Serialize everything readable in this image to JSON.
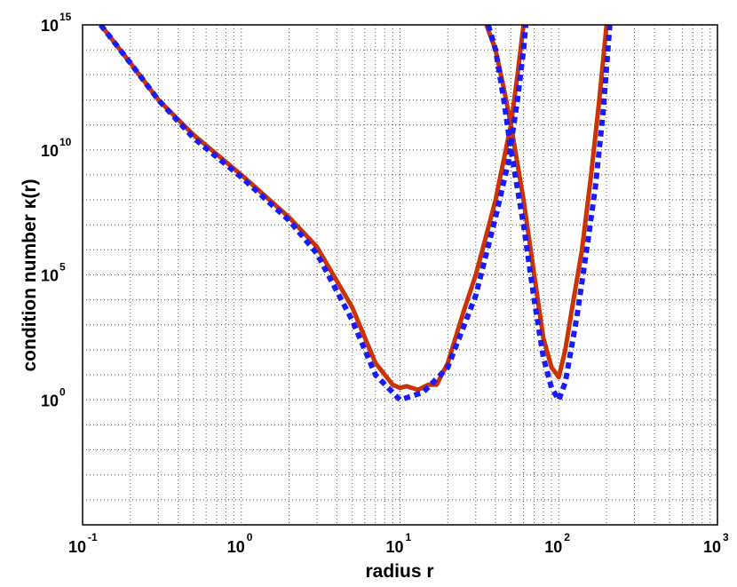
{
  "chart_data": {
    "type": "line",
    "title": "",
    "xlabel": "radius r",
    "ylabel": "condition number κ(r)",
    "xscale": "log",
    "yscale": "log",
    "xlim": [
      0.1,
      1000
    ],
    "ylim": [
      1e-05,
      1000000000000000
    ],
    "grid": "dotted",
    "legend": "none",
    "x_ticks": [
      {
        "base": "10",
        "exp": "-1",
        "value": 0.1
      },
      {
        "base": "10",
        "exp": "0",
        "value": 1
      },
      {
        "base": "10",
        "exp": "1",
        "value": 10
      },
      {
        "base": "10",
        "exp": "2",
        "value": 100
      },
      {
        "base": "10",
        "exp": "3",
        "value": 1000
      }
    ],
    "y_ticks": [
      {
        "base": "10",
        "exp": "0",
        "value": 1
      },
      {
        "base": "10",
        "exp": "5",
        "value": 100000
      },
      {
        "base": "10",
        "exp": "10",
        "value": 10000000000
      },
      {
        "base": "10",
        "exp": "15",
        "value": 1000000000000000
      }
    ],
    "series": [
      {
        "color": "#cc3300",
        "style": "solid",
        "segments": [
          [
            [
              0.13,
              1000000000000000.0
            ],
            [
              0.2,
              30000000000000.0
            ],
            [
              0.3,
              1000000000000.0
            ],
            [
              0.5,
              40000000000.0
            ],
            [
              1.0,
              1000000000.0
            ],
            [
              2.0,
              20000000.0
            ],
            [
              3.0,
              1300000.0
            ],
            [
              5.0,
              5000.0
            ],
            [
              7.0,
              30.0
            ],
            [
              9.0,
              4.0
            ],
            [
              10.0,
              3.0
            ],
            [
              11.0,
              3.5
            ],
            [
              13.0,
              2.5
            ],
            [
              15.0,
              4.0
            ],
            [
              17.0,
              4.0
            ],
            [
              20.0,
              30.0
            ],
            [
              25.0,
              3000.0
            ],
            [
              30.0,
              100000.0
            ],
            [
              35.0,
              4000000.0
            ],
            [
              40.0,
              100000000.0
            ],
            [
              45.0,
              4000000000.0
            ],
            [
              50.0,
              100000000000.0
            ],
            [
              55.0,
              10000000000000.0
            ],
            [
              60.0,
              1000000000000000.0
            ]
          ],
          [
            [
              35.0,
              1000000000000000.0
            ],
            [
              40.0,
              100000000000000.0
            ],
            [
              45.0,
              3000000000000.0
            ],
            [
              50.0,
              100000000000.0
            ],
            [
              60.0,
              100000000.0
            ],
            [
              70.0,
              100000.0
            ],
            [
              80.0,
              300.0
            ],
            [
              90.0,
              20.0
            ],
            [
              100.0,
              8.0
            ],
            [
              110.0,
              100.0
            ],
            [
              120.0,
              3000.0
            ],
            [
              140.0,
              1000000.0
            ],
            [
              160.0,
              1000000000.0
            ],
            [
              180.0,
              1000000000000.0
            ],
            [
              200.0,
              1000000000000000.0
            ]
          ]
        ]
      },
      {
        "color": "#1a1aff",
        "style": "dashed",
        "segments": [
          [
            [
              0.13,
              1000000000000000.0
            ],
            [
              0.2,
              30000000000000.0
            ],
            [
              0.3,
              1000000000000.0
            ],
            [
              0.5,
              30000000000.0
            ],
            [
              1.0,
              800000000.0
            ],
            [
              2.0,
              15000000.0
            ],
            [
              3.0,
              700000.0
            ],
            [
              5.0,
              1500.0
            ],
            [
              7.0,
              10.0
            ],
            [
              10.0,
              1.0
            ],
            [
              14.0,
              2.0
            ],
            [
              20.0,
              20.0
            ],
            [
              30.0,
              15000.0
            ],
            [
              40.0,
              20000000.0
            ],
            [
              48.0,
              3000000000.0
            ],
            [
              55.0,
              1000000000000.0
            ],
            [
              60.0,
              100000000000000.0
            ],
            [
              62.0,
              1000000000000000.0
            ]
          ],
          [
            [
              36.0,
              1000000000000000.0
            ],
            [
              40.0,
              100000000000000.0
            ],
            [
              45.0,
              1000000000000.0
            ],
            [
              50.0,
              10000000000.0
            ],
            [
              60.0,
              10000000.0
            ],
            [
              70.0,
              10000.0
            ],
            [
              80.0,
              50.0
            ],
            [
              90.0,
              3.0
            ],
            [
              100.0,
              1.0
            ],
            [
              110.0,
              5.0
            ],
            [
              130.0,
              2000.0
            ],
            [
              150.0,
              1000000.0
            ],
            [
              170.0,
              300000000.0
            ],
            [
              190.0,
              300000000000.0
            ],
            [
              210.0,
              1000000000000000.0
            ]
          ]
        ]
      }
    ]
  }
}
